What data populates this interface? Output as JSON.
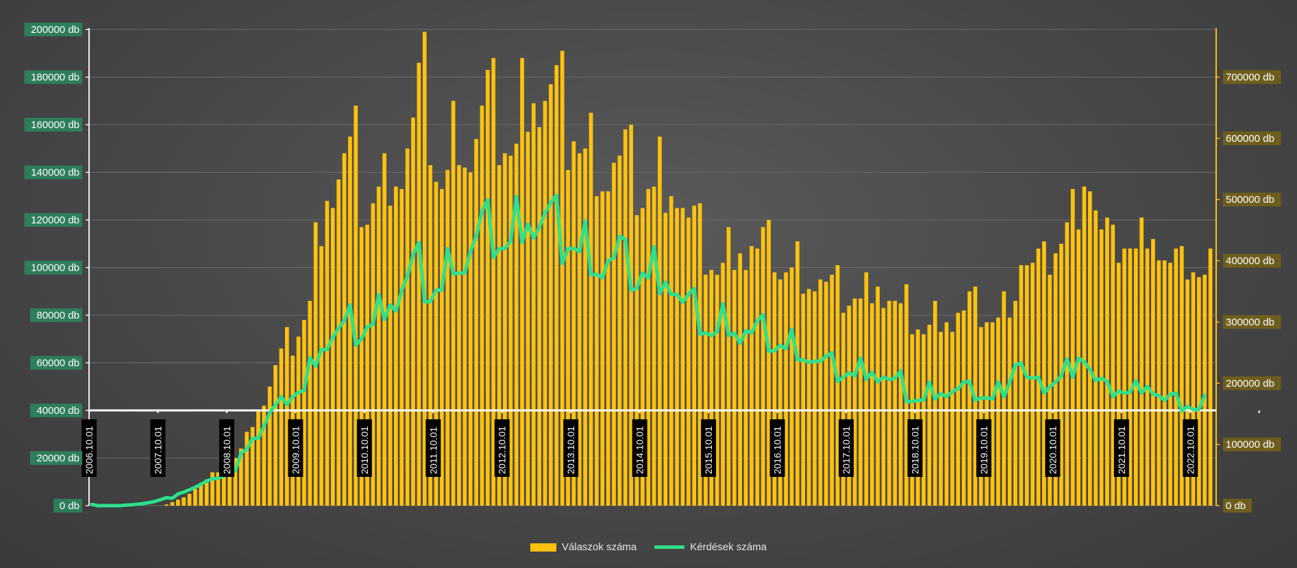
{
  "colors": {
    "bar": "#FFC20E",
    "line": "#2EE08C",
    "left_label_bg": "#2E7D5B",
    "right_label_bg": "#6E5E1E",
    "date_label_bg": "#000000",
    "grid": "#6a6a6a"
  },
  "chart_data": {
    "type": "bar+line",
    "title": "",
    "x": {
      "start": "2006.10.01",
      "labels": [
        "2006.10.01",
        "2007.10.01",
        "2008.10.01",
        "2009.10.01",
        "2010.10.01",
        "2011.10.01",
        "2012.10.01",
        "2013.10.01",
        "2014.10.01",
        "2015.10.01",
        "2016.10.01",
        "2017.10.01",
        "2018.10.01",
        "2019.10.01",
        "2020.10.01",
        "2021.10.01",
        "2022.10.01"
      ]
    },
    "left_axis": {
      "min": 0,
      "max": 200000,
      "ticks": [
        "0 db",
        "20000 db",
        "40000 db",
        "60000 db",
        "80000 db",
        "100000 db",
        "120000 db",
        "140000 db",
        "160000 db",
        "180000 db",
        "200000 db"
      ]
    },
    "right_axis": {
      "min": 0,
      "max": 777778,
      "ticks": [
        "0 db",
        "100000 db",
        "200000 db",
        "300000 db",
        "400000 db",
        "500000 db",
        "600000 db",
        "700000 db"
      ]
    },
    "series": [
      {
        "name": "Válaszok száma",
        "type": "bar",
        "axis": "left",
        "values": [
          0,
          0,
          0,
          0,
          0,
          0,
          0,
          0,
          0,
          0,
          0,
          0,
          0,
          500,
          1500,
          2500,
          3500,
          5000,
          7000,
          9000,
          11000,
          14000,
          14000,
          13000,
          16000,
          20000,
          24000,
          31000,
          33000,
          40000,
          42000,
          50000,
          59000,
          66000,
          75000,
          63000,
          71000,
          78000,
          86000,
          119000,
          109000,
          128000,
          125000,
          137000,
          148000,
          155000,
          168000,
          117000,
          118000,
          127000,
          134000,
          148000,
          126000,
          134000,
          133000,
          150000,
          163000,
          186000,
          199000,
          143000,
          136000,
          133000,
          141000,
          170000,
          143000,
          142000,
          140000,
          154000,
          168000,
          183000,
          188000,
          143000,
          148000,
          147000,
          152000,
          188000,
          157000,
          169000,
          159000,
          170000,
          177000,
          185000,
          191000,
          141000,
          153000,
          148000,
          150000,
          165000,
          130000,
          132000,
          132000,
          144000,
          147000,
          158000,
          160000,
          122000,
          125000,
          133000,
          134000,
          155000,
          123000,
          130000,
          125000,
          125000,
          121000,
          126000,
          127000,
          97000,
          99000,
          97000,
          102000,
          117000,
          99000,
          106000,
          99000,
          109000,
          108000,
          117000,
          120000,
          98000,
          95000,
          98000,
          100000,
          111000,
          89000,
          91000,
          90000,
          95000,
          94000,
          97000,
          101000,
          81000,
          84000,
          87000,
          87000,
          98000,
          85000,
          92000,
          83000,
          86000,
          86000,
          85000,
          93000,
          72000,
          74000,
          72000,
          76000,
          86000,
          73000,
          77000,
          73000,
          81000,
          82000,
          90000,
          92000,
          75000,
          77000,
          77000,
          79000,
          90000,
          79000,
          86000,
          101000,
          101000,
          102000,
          108000,
          111000,
          97000,
          106000,
          110000,
          119000,
          133000,
          116000,
          134000,
          132000,
          124000,
          116000,
          121000,
          118000,
          102000,
          108000,
          108000,
          108000,
          121000,
          108000,
          112000,
          103000,
          103000,
          102000,
          108000,
          109000,
          95000,
          98000,
          96000,
          97000,
          108000
        ]
      },
      {
        "name": "Kérdések száma",
        "type": "line",
        "axis": "right",
        "values": [
          2000,
          0,
          0,
          0,
          0,
          0,
          1000,
          1500,
          2500,
          3500,
          5000,
          7000,
          10000,
          13000,
          12000,
          19000,
          22000,
          26000,
          30000,
          35000,
          40000,
          44000,
          45000,
          48000,
          52000,
          57000,
          86000,
          92000,
          110000,
          110000,
          130000,
          152000,
          165000,
          178000,
          165000,
          178000,
          185000,
          188000,
          242000,
          228000,
          255000,
          255000,
          275000,
          290000,
          302000,
          328000,
          262000,
          272000,
          292000,
          296000,
          345000,
          304000,
          328000,
          318000,
          350000,
          375000,
          410000,
          430000,
          333000,
          333000,
          352000,
          352000,
          420000,
          378000,
          380000,
          380000,
          415000,
          440000,
          480000,
          500000,
          405000,
          420000,
          420000,
          432000,
          505000,
          430000,
          460000,
          437000,
          455000,
          478000,
          495000,
          507000,
          395000,
          420000,
          420000,
          415000,
          465000,
          377000,
          378000,
          372000,
          400000,
          405000,
          440000,
          435000,
          352000,
          355000,
          380000,
          372000,
          423000,
          346000,
          365000,
          345000,
          345000,
          332000,
          345000,
          355000,
          280000,
          282000,
          278000,
          284000,
          330000,
          278000,
          282000,
          265000,
          286000,
          282000,
          302000,
          312000,
          252000,
          253000,
          262000,
          256000,
          288000,
          238000,
          238000,
          234000,
          236000,
          236000,
          244000,
          250000,
          203000,
          210000,
          217000,
          212000,
          241000,
          206000,
          218000,
          202000,
          210000,
          206000,
          208000,
          220000,
          170000,
          170000,
          172000,
          172000,
          202000,
          174000,
          183000,
          178000,
          186000,
          191000,
          202000,
          203000,
          172000,
          176000,
          176000,
          174000,
          202000,
          178000,
          201000,
          230000,
          233000,
          210000,
          208000,
          210000,
          184000,
          194000,
          202000,
          212000,
          240000,
          210000,
          241000,
          235000,
          222000,
          204000,
          208000,
          203000,
          178000,
          187000,
          184000,
          185000,
          204000,
          184000,
          195000,
          182000,
          180000,
          172000,
          182000,
          184000,
          155000,
          162000,
          157000,
          157000,
          180000
        ]
      }
    ],
    "legend": {
      "position": "bottom-center"
    }
  }
}
